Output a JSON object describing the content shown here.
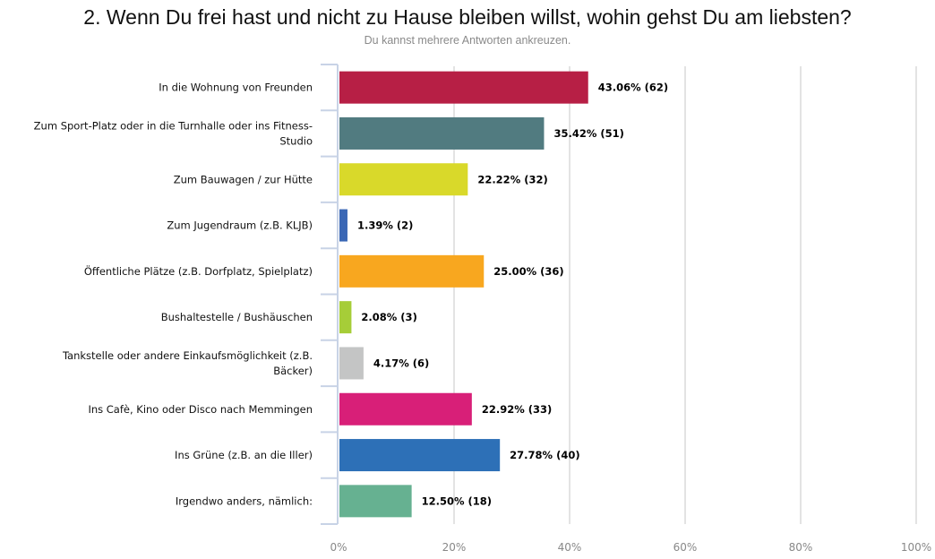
{
  "header": {
    "title": "2. Wenn Du frei hast und nicht zu Hause bleiben willst, wohin gehst Du am liebsten?",
    "subtitle": "Du kannst mehrere Antworten ankreuzen."
  },
  "chart_data": {
    "type": "bar",
    "orientation": "horizontal",
    "title": "2. Wenn Du frei hast und nicht zu Hause bleiben willst, wohin gehst Du am liebsten?",
    "subtitle": "Du kannst mehrere Antworten ankreuzen.",
    "xlabel": "",
    "ylabel": "",
    "xlim": [
      0,
      100
    ],
    "x_ticks": [
      "0%",
      "20%",
      "40%",
      "60%",
      "80%",
      "100%"
    ],
    "x_tick_values": [
      0,
      20,
      40,
      60,
      80,
      100
    ],
    "grid": true,
    "legend": "none",
    "categories": [
      [
        "In die Wohnung von Freunden"
      ],
      [
        "Zum Sport-Platz oder in die Turnhalle oder ins Fitness-",
        "Studio"
      ],
      [
        "Zum Bauwagen / zur Hütte"
      ],
      [
        "Zum Jugendraum (z.B. KLJB)"
      ],
      [
        "Öffentliche Plätze (z.B. Dorfplatz, Spielplatz)"
      ],
      [
        "Bushaltestelle / Bushäuschen"
      ],
      [
        "Tankstelle oder andere Einkaufsmöglichkeit (z.B.",
        "Bäcker)"
      ],
      [
        "Ins Cafè, Kino oder Disco nach Memmingen"
      ],
      [
        "Ins Grüne (z.B. an die Iller)"
      ],
      [
        "Irgendwo anders, nämlich:"
      ]
    ],
    "values": [
      43.06,
      35.42,
      22.22,
      1.39,
      25.0,
      2.08,
      4.17,
      22.92,
      27.78,
      12.5
    ],
    "counts": [
      62,
      51,
      32,
      2,
      36,
      3,
      6,
      33,
      40,
      18
    ],
    "data_labels": [
      "43.06% (62)",
      "35.42% (51)",
      "22.22% (32)",
      "1.39% (2)",
      "25.00% (36)",
      "2.08% (3)",
      "4.17% (6)",
      "22.92% (33)",
      "27.78% (40)",
      "12.50% (18)"
    ],
    "colors": [
      "#b71f45",
      "#517b80",
      "#d9d92a",
      "#3a67b5",
      "#f8a71f",
      "#a6cd38",
      "#c4c5c5",
      "#d81f78",
      "#2d70b7",
      "#66b191"
    ]
  },
  "style": {
    "gridline_color": "#e3e3e3",
    "axis_color": "#c8d3e6"
  }
}
